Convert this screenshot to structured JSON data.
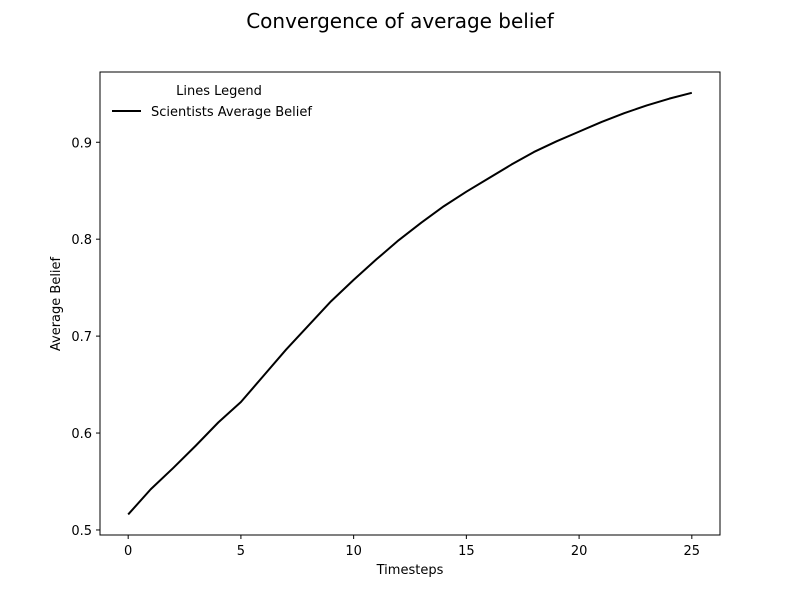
{
  "chart_data": {
    "type": "line",
    "title": "Convergence of average belief",
    "xlabel": "Timesteps",
    "ylabel": "Average Belief",
    "xlim": [
      -1.25,
      26.25
    ],
    "ylim": [
      0.4948,
      0.9725
    ],
    "xticks": [
      0,
      5,
      10,
      15,
      20,
      25
    ],
    "yticks": [
      0.5,
      0.6,
      0.7,
      0.8,
      0.9
    ],
    "xtick_labels": [
      "0",
      "5",
      "10",
      "15",
      "20",
      "25"
    ],
    "ytick_labels": [
      "0.5",
      "0.6",
      "0.7",
      "0.8",
      "0.9"
    ],
    "grid": false,
    "legend": {
      "title": "Lines Legend",
      "location": "top-left",
      "frame": false
    },
    "series": [
      {
        "name": "Scientists Average Belief",
        "color": "#000000",
        "x": [
          0,
          1,
          2,
          3,
          4,
          5,
          6,
          7,
          8,
          9,
          10,
          11,
          12,
          13,
          14,
          15,
          16,
          17,
          18,
          19,
          20,
          21,
          22,
          23,
          24,
          25
        ],
        "y": [
          0.516,
          0.542,
          0.564,
          0.587,
          0.611,
          0.632,
          0.659,
          0.686,
          0.711,
          0.736,
          0.758,
          0.779,
          0.799,
          0.817,
          0.834,
          0.849,
          0.863,
          0.877,
          0.89,
          0.901,
          0.911,
          0.921,
          0.93,
          0.938,
          0.945,
          0.951
        ]
      }
    ]
  }
}
